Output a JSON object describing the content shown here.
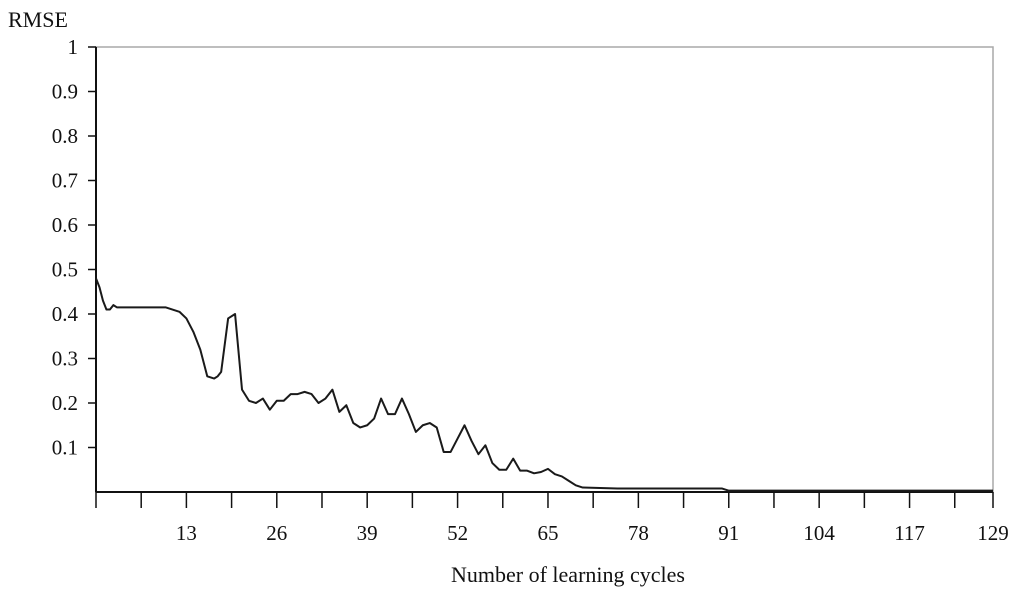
{
  "chart_data": {
    "type": "line",
    "ylabel": "RMSE",
    "xlabel": "Number of learning cycles",
    "xlim": [
      0,
      129
    ],
    "ylim": [
      0,
      1
    ],
    "x_ticks": [
      13,
      26,
      39,
      52,
      65,
      78,
      91,
      104,
      117,
      129
    ],
    "y_ticks": [
      0.1,
      0.2,
      0.3,
      0.4,
      0.5,
      0.6,
      0.7,
      0.8,
      0.9,
      1
    ],
    "x_tick_labels": [
      "13",
      "26",
      "39",
      "52",
      "65",
      "78",
      "91",
      "104",
      "117",
      "129"
    ],
    "y_tick_labels": [
      "0.1",
      "0.2",
      "0.3",
      "0.4",
      "0.5",
      "0.6",
      "0.7",
      "0.8",
      "0.9",
      "1"
    ],
    "grid": false,
    "line_color": "#1a1a1a",
    "series": [
      {
        "x": [
          0,
          0.5,
          1,
          1.5,
          2,
          2.5,
          3,
          4,
          5,
          6,
          7,
          8,
          9,
          10,
          11,
          12,
          13,
          14,
          15,
          16,
          17,
          17.5,
          18,
          19,
          20,
          21,
          22,
          23,
          24,
          25,
          26,
          27,
          28,
          29,
          30,
          31,
          32,
          33,
          34,
          35,
          36,
          37,
          38,
          39,
          40,
          41,
          42,
          43,
          44,
          45,
          46,
          47,
          48,
          49,
          50,
          51,
          52,
          53,
          54,
          55,
          56,
          57,
          58,
          59,
          60,
          61,
          62,
          63,
          64,
          65,
          66,
          67,
          68,
          69,
          70,
          75,
          80,
          85,
          90,
          91,
          100,
          110,
          120,
          129
        ],
        "y": [
          0.48,
          0.46,
          0.43,
          0.41,
          0.41,
          0.42,
          0.415,
          0.415,
          0.415,
          0.415,
          0.415,
          0.415,
          0.415,
          0.415,
          0.41,
          0.405,
          0.39,
          0.36,
          0.32,
          0.26,
          0.255,
          0.26,
          0.27,
          0.39,
          0.4,
          0.23,
          0.205,
          0.2,
          0.21,
          0.185,
          0.205,
          0.205,
          0.22,
          0.22,
          0.225,
          0.22,
          0.2,
          0.21,
          0.23,
          0.18,
          0.195,
          0.155,
          0.145,
          0.15,
          0.165,
          0.21,
          0.175,
          0.175,
          0.21,
          0.175,
          0.135,
          0.15,
          0.155,
          0.145,
          0.09,
          0.09,
          0.12,
          0.15,
          0.115,
          0.085,
          0.105,
          0.065,
          0.05,
          0.05,
          0.075,
          0.048,
          0.048,
          0.042,
          0.045,
          0.052,
          0.04,
          0.035,
          0.025,
          0.015,
          0.01,
          0.008,
          0.008,
          0.008,
          0.008,
          0.003,
          0.003,
          0.003,
          0.003,
          0.003
        ]
      }
    ]
  }
}
